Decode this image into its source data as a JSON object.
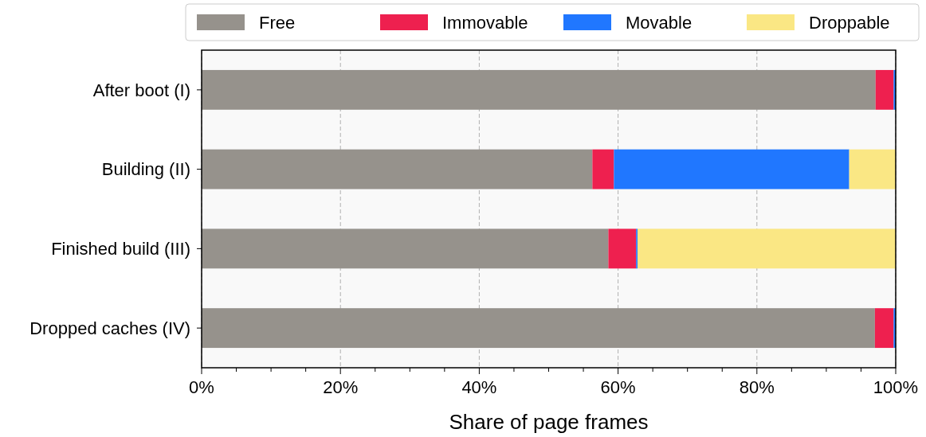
{
  "chart_data": {
    "type": "bar",
    "orientation": "horizontal",
    "stacked": true,
    "categories": [
      "After boot (I)",
      "Building (II)",
      "Finished build (III)",
      "Dropped caches (IV)"
    ],
    "series": [
      {
        "name": "Free",
        "color": "#96928c",
        "values": [
          97.1,
          56.3,
          58.6,
          97.0
        ]
      },
      {
        "name": "Immovable",
        "color": "#ee204f",
        "values": [
          2.6,
          3.1,
          4.0,
          2.7
        ]
      },
      {
        "name": "Movable",
        "color": "#2077ff",
        "values": [
          0.3,
          33.9,
          0.2,
          0.3
        ]
      },
      {
        "name": "Droppable",
        "color": "#fae784",
        "values": [
          0,
          6.7,
          37.2,
          0
        ]
      }
    ],
    "xlabel": "Share of page frames",
    "xlim": [
      0,
      100
    ],
    "xticks": [
      {
        "value": 0,
        "label": "0%"
      },
      {
        "value": 5,
        "label": null
      },
      {
        "value": 10,
        "label": null
      },
      {
        "value": 15,
        "label": null
      },
      {
        "value": 20,
        "label": "20%"
      },
      {
        "value": 25,
        "label": null
      },
      {
        "value": 30,
        "label": null
      },
      {
        "value": 35,
        "label": null
      },
      {
        "value": 40,
        "label": "40%"
      },
      {
        "value": 45,
        "label": null
      },
      {
        "value": 50,
        "label": null
      },
      {
        "value": 55,
        "label": null
      },
      {
        "value": 60,
        "label": "60%"
      },
      {
        "value": 65,
        "label": null
      },
      {
        "value": 70,
        "label": null
      },
      {
        "value": 75,
        "label": null
      },
      {
        "value": 80,
        "label": "80%"
      },
      {
        "value": 85,
        "label": null
      },
      {
        "value": 90,
        "label": null
      },
      {
        "value": 95,
        "label": null
      },
      {
        "value": 100,
        "label": "100%"
      }
    ],
    "grid": "x",
    "legend": "top"
  }
}
